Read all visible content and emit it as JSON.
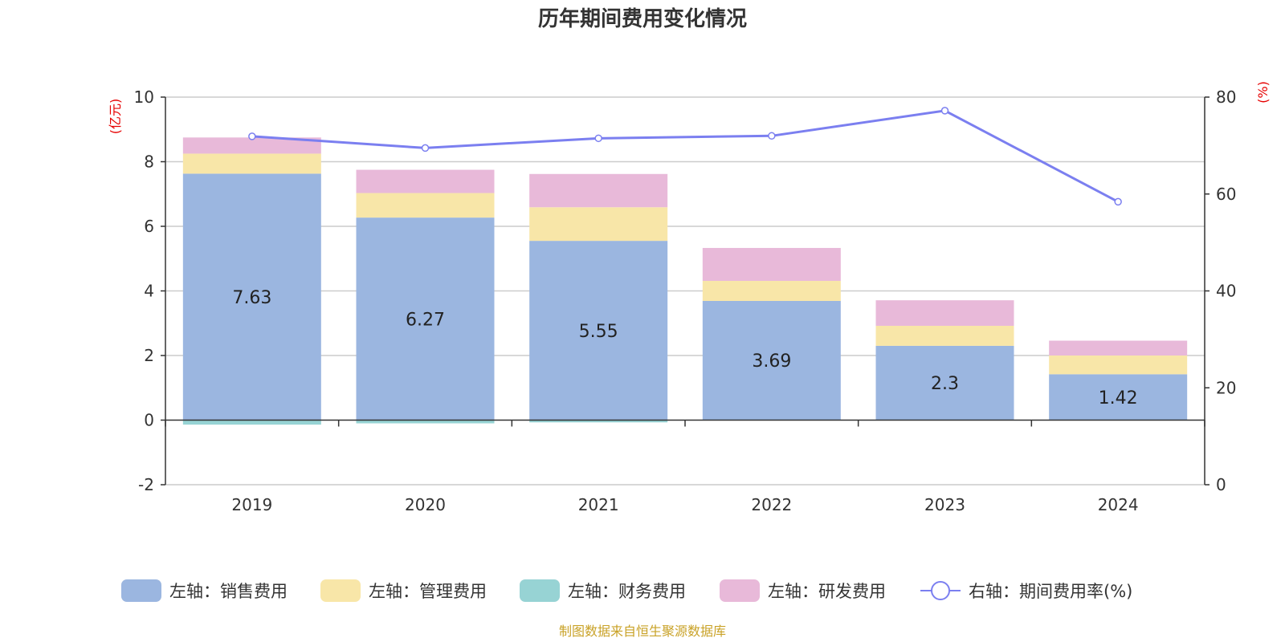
{
  "chart_data": {
    "type": "bar",
    "title": "历年期间费用变化情况",
    "categories": [
      "2019",
      "2020",
      "2021",
      "2022",
      "2023",
      "2024"
    ],
    "y_left": {
      "unit": "(亿元)",
      "ylim": [
        -2,
        10
      ],
      "ticks": [
        -2,
        0,
        2,
        4,
        6,
        8,
        10
      ]
    },
    "y_right": {
      "unit": "(%)",
      "ylim": [
        0,
        80
      ],
      "ticks": [
        0,
        20,
        40,
        60,
        80
      ]
    },
    "series": [
      {
        "name": "左轴：销售费用",
        "type": "bar",
        "axis": "left",
        "color": "#9bb6e0",
        "values": [
          7.63,
          6.27,
          5.55,
          3.69,
          2.3,
          1.42
        ],
        "show_labels": true
      },
      {
        "name": "左轴：管理费用",
        "type": "bar",
        "axis": "left",
        "color": "#f8e6a8",
        "values": [
          0.62,
          0.76,
          1.04,
          0.62,
          0.62,
          0.58
        ],
        "show_labels": false
      },
      {
        "name": "左轴：财务费用",
        "type": "bar",
        "axis": "left",
        "color": "#97d3d4",
        "values": [
          -0.14,
          -0.1,
          -0.07,
          0.0,
          0.0,
          0.0
        ],
        "show_labels": false
      },
      {
        "name": "左轴：研发费用",
        "type": "bar",
        "axis": "left",
        "color": "#e8b9d9",
        "values": [
          0.5,
          0.72,
          1.03,
          1.02,
          0.79,
          0.46
        ],
        "show_labels": false
      },
      {
        "name": "右轴：期间费用率(%)",
        "type": "line",
        "axis": "right",
        "color": "#7b7ff0",
        "values": [
          71.9,
          69.5,
          71.5,
          72.0,
          77.2,
          58.4
        ]
      }
    ],
    "grid": true,
    "legend_position": "bottom"
  },
  "source_text": "制图数据来自恒生聚源数据库"
}
